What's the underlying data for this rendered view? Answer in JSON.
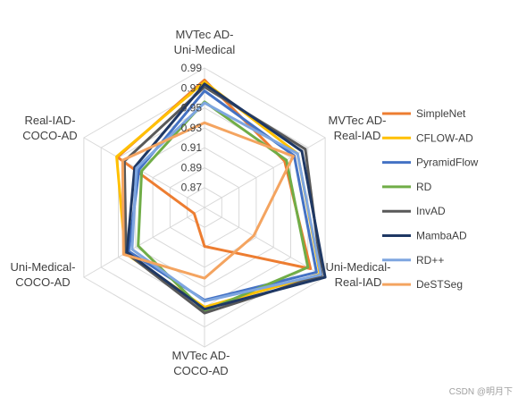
{
  "chart_data": {
    "type": "radar",
    "axes": [
      [
        "MVTec AD-",
        "Uni-Medical"
      ],
      [
        "MVTec AD-",
        "Real-IAD"
      ],
      [
        "Uni-Medical-",
        "Real-IAD"
      ],
      [
        "MVTec AD-",
        "COCO-AD"
      ],
      [
        "Uni-Medical-",
        "COCO-AD"
      ],
      [
        "Real-IAD-",
        "COCO-AD"
      ]
    ],
    "range": [
      0.85,
      0.99
    ],
    "ticks": [
      "0.87",
      "0.89",
      "0.91",
      "0.93",
      "0.95",
      "0.97",
      "0.99"
    ],
    "grid": true,
    "legend_position": "right",
    "series": [
      {
        "name": "SimpleNet",
        "color": "#ED7D31",
        "values": [
          0.978,
          0.943,
          0.973,
          0.889,
          0.862,
          0.951
        ]
      },
      {
        "name": "CFLOW-AD",
        "color": "#FFC000",
        "values": [
          0.976,
          0.958,
          0.984,
          0.95,
          0.942,
          0.952
        ]
      },
      {
        "name": "PyramidFlow",
        "color": "#4472C4",
        "values": [
          0.967,
          0.954,
          0.98,
          0.943,
          0.938,
          0.926
        ]
      },
      {
        "name": "RD",
        "color": "#70AD47",
        "values": [
          0.956,
          0.945,
          0.97,
          0.954,
          0.927,
          0.923
        ]
      },
      {
        "name": "InvAD",
        "color": "#595959",
        "values": [
          0.971,
          0.967,
          0.986,
          0.956,
          0.941,
          0.943
        ]
      },
      {
        "name": "MambaAD",
        "color": "#1F3864",
        "values": [
          0.974,
          0.963,
          0.99,
          0.952,
          0.94,
          0.931
        ]
      },
      {
        "name": "RD++",
        "color": "#7EA6E0",
        "values": [
          0.955,
          0.958,
          0.985,
          0.944,
          0.934,
          0.929
        ]
      },
      {
        "name": "DeSTSeg",
        "color": "#F4A460",
        "values": [
          0.935,
          0.953,
          0.907,
          0.921,
          0.944,
          0.945
        ]
      }
    ]
  },
  "watermark": "CSDN @明月下"
}
